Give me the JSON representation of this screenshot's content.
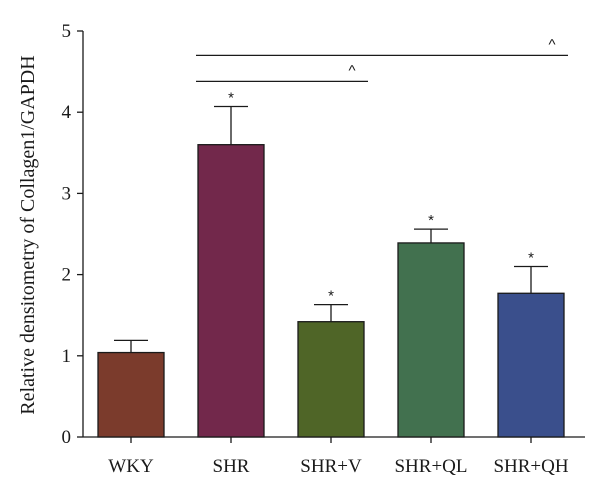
{
  "chart_data": {
    "type": "bar",
    "categories": [
      "WKY",
      "SHR",
      "SHR+V",
      "SHR+QL",
      "SHR+QH"
    ],
    "values": [
      1.04,
      3.6,
      1.42,
      2.39,
      1.77
    ],
    "errors": [
      0.15,
      0.47,
      0.21,
      0.17,
      0.33
    ],
    "significance_marks": [
      "",
      "*",
      "*",
      "*",
      "*"
    ],
    "colors": [
      "#7b3b2c",
      "#72284b",
      "#4f6527",
      "#42714f",
      "#3a4f8c"
    ],
    "ylabel": "Relative densitometry of Collagen1/GAPDH",
    "ylim": [
      0,
      5
    ],
    "yticks": [
      "0",
      "1",
      "2",
      "3",
      "4",
      "5"
    ],
    "comparison_brackets": [
      {
        "from": "SHR",
        "to": "SHR+V",
        "y": 4.38,
        "symbol": "^"
      },
      {
        "from": "SHR",
        "to": "SHR+QH",
        "y": 4.7,
        "symbol": "^"
      }
    ],
    "grid": false,
    "legend": "none"
  }
}
